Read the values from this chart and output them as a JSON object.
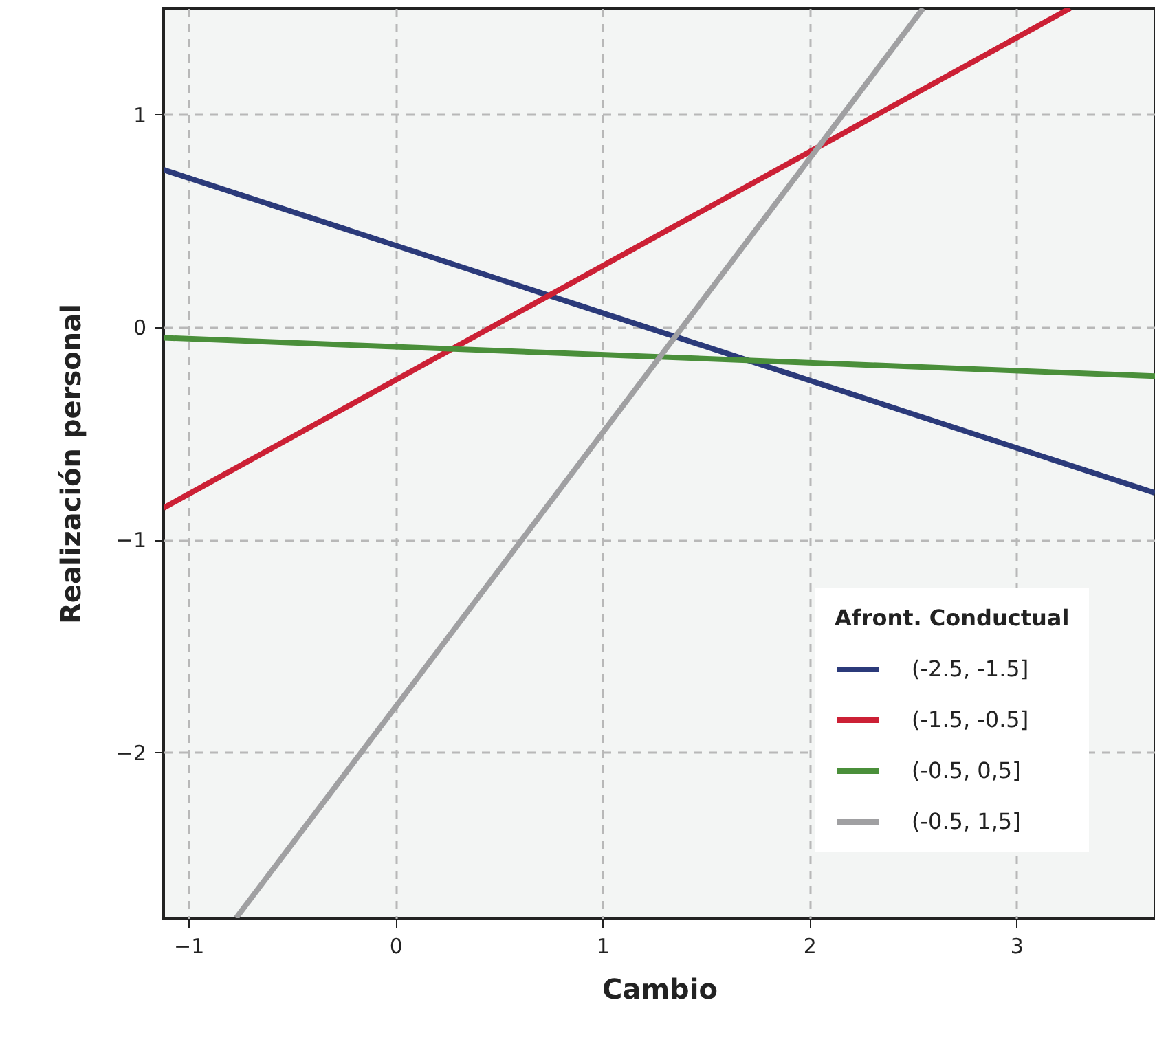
{
  "chart_data": {
    "type": "line",
    "xlabel": "Cambio",
    "ylabel": "Realización personal",
    "legend_title": "Afront. Conductual",
    "legend": "bottom right",
    "grid": true,
    "line_style": "solid",
    "xlim": [
      -1.12,
      3.67
    ],
    "ylim": [
      -2.78,
      1.5
    ],
    "xticks": [
      -1,
      0,
      1,
      2,
      3
    ],
    "yticks": [
      -2,
      -1,
      0,
      1
    ],
    "series": [
      {
        "name": "(-2.5, -1.5]",
        "color": "#2b3a7a",
        "x": [
          -1.12,
          3.67
        ],
        "values": [
          0.74,
          -0.78
        ]
      },
      {
        "name": "(-1.5, -0.5]",
        "color": "#cc2035",
        "x": [
          -1.12,
          3.26
        ],
        "values": [
          -0.85,
          1.5
        ]
      },
      {
        "name": "(-0.5, 0,5]",
        "color": "#4a8f3a",
        "x": [
          -1.12,
          3.67
        ],
        "values": [
          -0.05,
          -0.23
        ]
      },
      {
        "name": "(-0.5, 1,5]",
        "color": "#a0a0a2",
        "x": [
          -0.77,
          2.55
        ],
        "values": [
          -2.78,
          1.5
        ]
      }
    ]
  }
}
